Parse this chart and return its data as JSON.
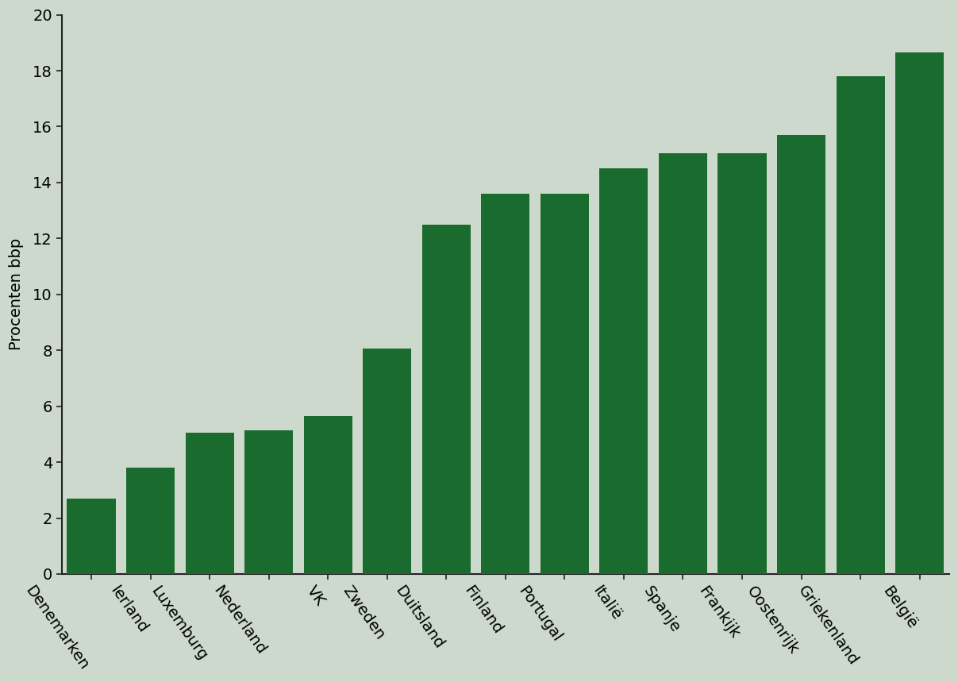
{
  "categories": [
    "Denemarken",
    "Ierland",
    "Luxemburg",
    "Nederland",
    "VK",
    "Zweden",
    "Duitsland",
    "Finland",
    "Portugal",
    "Italië",
    "Spanje",
    "Frankijk",
    "Oostenrijk",
    "Griekenland",
    "België"
  ],
  "values": [
    2.7,
    3.8,
    5.05,
    5.15,
    5.65,
    8.05,
    12.5,
    13.6,
    13.6,
    14.5,
    15.05,
    15.05,
    15.7,
    17.8,
    18.65
  ],
  "bar_color": "#1a6b2e",
  "background_color": "#ccd9cc",
  "ylabel": "Procenten bbp",
  "ylim": [
    0,
    20
  ],
  "yticks": [
    0,
    2,
    4,
    6,
    8,
    10,
    12,
    14,
    16,
    18,
    20
  ],
  "tick_label_fontsize": 14,
  "ylabel_fontsize": 14,
  "bar_width": 0.82,
  "spine_color": "#222222",
  "xlabel_rotation": -55
}
